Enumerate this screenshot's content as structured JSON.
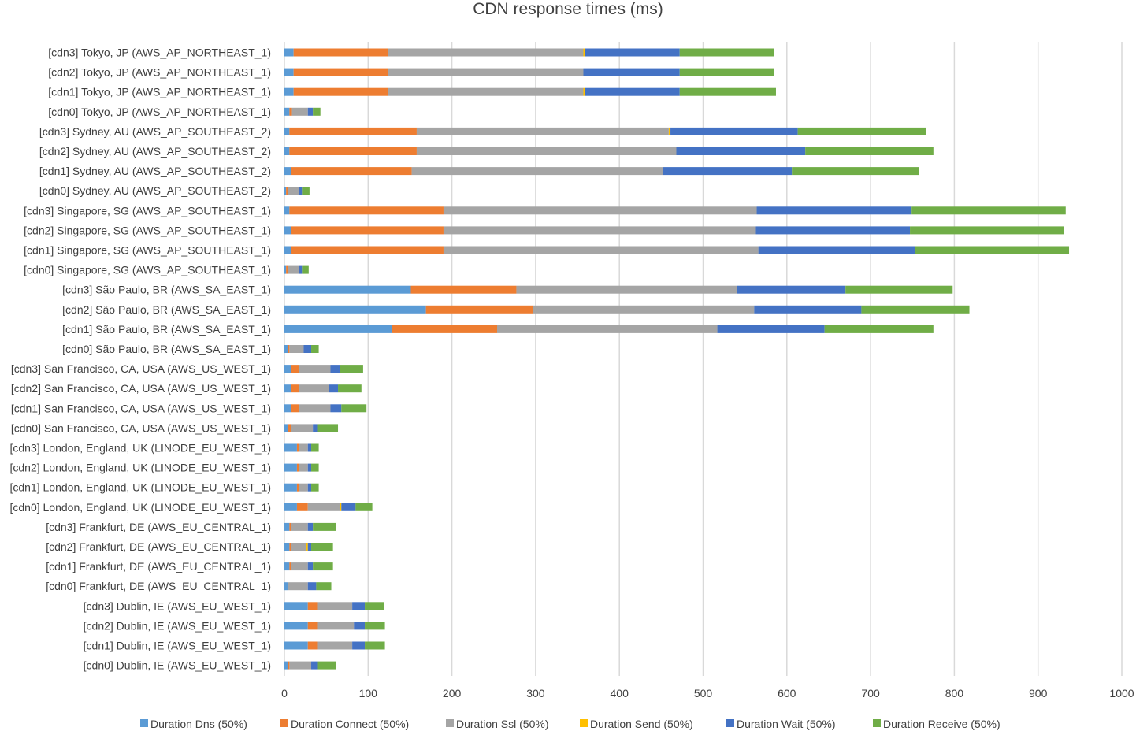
{
  "chart_data": {
    "type": "bar",
    "orientation": "horizontal",
    "stacked": true,
    "title": "CDN response times (ms)",
    "xlabel": "",
    "ylabel": "",
    "xlim": [
      0,
      1000
    ],
    "xticks": [
      "0",
      "100",
      "200",
      "300",
      "400",
      "500",
      "600",
      "700",
      "800",
      "900",
      "1000"
    ],
    "grid": true,
    "legend_position": "bottom",
    "categories": [
      "[cdn3] Tokyo, JP (AWS_AP_NORTHEAST_1)",
      "[cdn2] Tokyo, JP (AWS_AP_NORTHEAST_1)",
      "[cdn1] Tokyo, JP (AWS_AP_NORTHEAST_1)",
      "[cdn0] Tokyo, JP (AWS_AP_NORTHEAST_1)",
      "[cdn3] Sydney, AU (AWS_AP_SOUTHEAST_2)",
      "[cdn2] Sydney, AU (AWS_AP_SOUTHEAST_2)",
      "[cdn1] Sydney, AU (AWS_AP_SOUTHEAST_2)",
      "[cdn0] Sydney, AU (AWS_AP_SOUTHEAST_2)",
      "[cdn3] Singapore, SG (AWS_AP_SOUTHEAST_1)",
      "[cdn2] Singapore, SG (AWS_AP_SOUTHEAST_1)",
      "[cdn1] Singapore, SG (AWS_AP_SOUTHEAST_1)",
      "[cdn0] Singapore, SG (AWS_AP_SOUTHEAST_1)",
      "[cdn3] São Paulo, BR (AWS_SA_EAST_1)",
      "[cdn2] São Paulo, BR (AWS_SA_EAST_1)",
      "[cdn1] São Paulo, BR (AWS_SA_EAST_1)",
      "[cdn0] São Paulo, BR (AWS_SA_EAST_1)",
      "[cdn3] San Francisco, CA, USA (AWS_US_WEST_1)",
      "[cdn2] San Francisco, CA, USA (AWS_US_WEST_1)",
      "[cdn1] San Francisco, CA, USA (AWS_US_WEST_1)",
      "[cdn0] San Francisco, CA, USA (AWS_US_WEST_1)",
      "[cdn3] London, England, UK (LINODE_EU_WEST_1)",
      "[cdn2] London, England, UK (LINODE_EU_WEST_1)",
      "[cdn1] London, England, UK (LINODE_EU_WEST_1)",
      "[cdn0] London, England, UK (LINODE_EU_WEST_1)",
      "[cdn3] Frankfurt, DE (AWS_EU_CENTRAL_1)",
      "[cdn2] Frankfurt, DE (AWS_EU_CENTRAL_1)",
      "[cdn1] Frankfurt, DE (AWS_EU_CENTRAL_1)",
      "[cdn0] Frankfurt, DE (AWS_EU_CENTRAL_1)",
      "[cdn3] Dublin, IE (AWS_EU_WEST_1)",
      "[cdn2] Dublin, IE (AWS_EU_WEST_1)",
      "[cdn1] Dublin, IE (AWS_EU_WEST_1)",
      "[cdn0] Dublin, IE (AWS_EU_WEST_1)"
    ],
    "series": [
      {
        "name": "Duration Dns (50%)",
        "color": "#5b9bd5",
        "values": [
          11,
          11,
          11,
          6,
          6,
          6,
          8,
          2,
          6,
          8,
          8,
          2,
          151,
          169,
          128,
          4,
          8,
          8,
          8,
          4,
          15,
          15,
          15,
          15,
          6,
          6,
          6,
          4,
          28,
          28,
          28,
          4
        ]
      },
      {
        "name": "Duration Connect (50%)",
        "color": "#ed7d31",
        "values": [
          113,
          113,
          113,
          3,
          152,
          152,
          144,
          2,
          184,
          182,
          182,
          2,
          126,
          128,
          126,
          2,
          9,
          9,
          9,
          4,
          2,
          2,
          2,
          13,
          2,
          2,
          2,
          0,
          12,
          12,
          12,
          2
        ]
      },
      {
        "name": "Duration Ssl (50%)",
        "color": "#a5a5a5",
        "values": [
          233,
          233,
          233,
          19,
          301,
          310,
          300,
          13,
          374,
          373,
          376,
          13,
          263,
          264,
          263,
          17,
          38,
          36,
          38,
          26,
          11,
          11,
          11,
          38,
          20,
          18,
          20,
          24,
          41,
          43,
          41,
          26
        ]
      },
      {
        "name": "Duration Send (50%)",
        "color": "#ffc000",
        "values": [
          2,
          0,
          2,
          0,
          2,
          0,
          0,
          0,
          0,
          0,
          0,
          0,
          0,
          0,
          0,
          0,
          0,
          0,
          0,
          0,
          0,
          0,
          0,
          2,
          0,
          2,
          0,
          0,
          0,
          0,
          0,
          0
        ]
      },
      {
        "name": "Duration Wait (50%)",
        "color": "#4472c4",
        "values": [
          113,
          115,
          113,
          6,
          152,
          154,
          154,
          4,
          185,
          184,
          187,
          4,
          130,
          128,
          128,
          9,
          11,
          11,
          13,
          6,
          4,
          4,
          4,
          17,
          6,
          4,
          6,
          10,
          15,
          13,
          15,
          8
        ]
      },
      {
        "name": "Duration Receive (50%)",
        "color": "#70ad47",
        "values": [
          113,
          113,
          115,
          9,
          153,
          153,
          152,
          9,
          184,
          184,
          184,
          8,
          128,
          129,
          130,
          9,
          28,
          28,
          30,
          24,
          9,
          9,
          9,
          20,
          28,
          26,
          24,
          18,
          23,
          24,
          24,
          22
        ]
      }
    ]
  }
}
